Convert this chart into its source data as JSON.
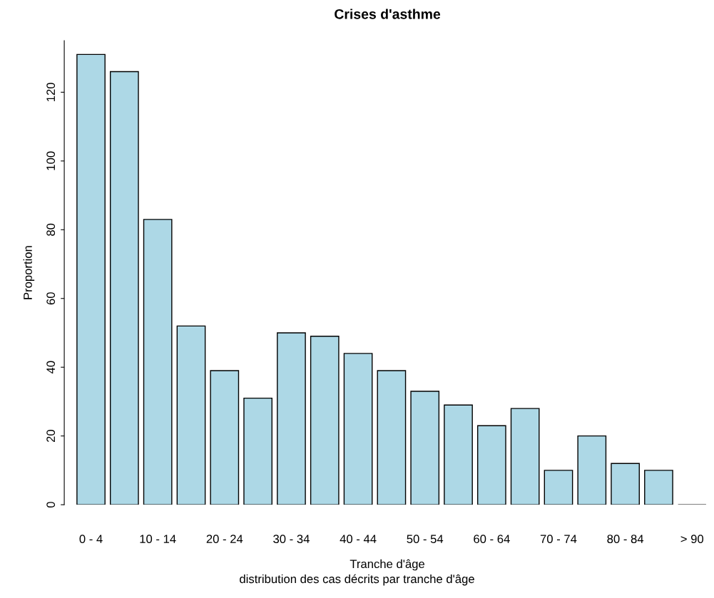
{
  "chart_data": {
    "type": "bar",
    "title": "Crises d'asthme",
    "subtitle": "distribution des cas décrits par tranche d'âge",
    "xlabel": "Tranche d'âge",
    "ylabel": "Proportion",
    "categories": [
      "0 - 4",
      null,
      "10 - 14",
      null,
      "20 - 24",
      null,
      "30 - 34",
      null,
      "40 - 44",
      null,
      "50 - 54",
      null,
      "60 - 64",
      null,
      "70 - 74",
      null,
      "80 - 84",
      null,
      "> 90"
    ],
    "values": [
      131,
      126,
      83,
      52,
      39,
      31,
      50,
      49,
      44,
      39,
      33,
      29,
      23,
      28,
      10,
      20,
      12,
      10,
      0
    ],
    "colors": [
      "#add8e6",
      "#add8e6",
      "#add8e6",
      "#add8e6",
      "#add8e6",
      "#add8e6",
      "#add8e6",
      "#add8e6",
      "#add8e6",
      "#add8e6",
      "#add8e6",
      "#add8e6",
      "#add8e6",
      "#add8e6",
      "#add8e6",
      "#add8e6",
      "#add8e6",
      "#add8e6",
      "#000000"
    ],
    "ylim": [
      0,
      135
    ],
    "yticks": [
      0,
      20,
      40,
      60,
      80,
      100,
      120
    ],
    "grid": false,
    "legend": false
  }
}
